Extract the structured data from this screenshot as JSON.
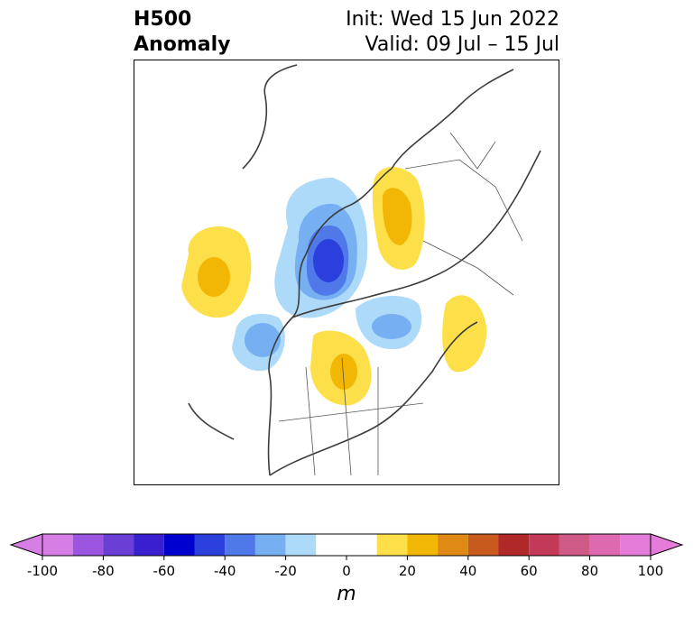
{
  "header": {
    "title_line1": "H500",
    "title_line2": "Anomaly",
    "init_text": "Init: Wed 15 Jun 2022",
    "valid_text": "Valid: 09 Jul – 15 Jul"
  },
  "colorbar": {
    "unit": "m",
    "tick_labels": [
      "-100",
      "-80",
      "-60",
      "-40",
      "-20",
      "0",
      "20",
      "40",
      "60",
      "80",
      "100"
    ],
    "bins": [
      {
        "lo": -100,
        "hi": -90,
        "color": "#d67ee6"
      },
      {
        "lo": -90,
        "hi": -80,
        "color": "#9b55e0"
      },
      {
        "lo": -80,
        "hi": -70,
        "color": "#6b3fd6"
      },
      {
        "lo": -70,
        "hi": -60,
        "color": "#3a1fd0"
      },
      {
        "lo": -60,
        "hi": -50,
        "color": "#0000cf"
      },
      {
        "lo": -50,
        "hi": -40,
        "color": "#2a3fdc"
      },
      {
        "lo": -40,
        "hi": -30,
        "color": "#4f78e8"
      },
      {
        "lo": -30,
        "hi": -20,
        "color": "#76b0f2"
      },
      {
        "lo": -20,
        "hi": -10,
        "color": "#aedaf9"
      },
      {
        "lo": -10,
        "hi": 10,
        "color": "#ffffff"
      },
      {
        "lo": 10,
        "hi": 20,
        "color": "#fde049"
      },
      {
        "lo": 20,
        "hi": 30,
        "color": "#f2b705"
      },
      {
        "lo": 30,
        "hi": 40,
        "color": "#df8a14"
      },
      {
        "lo": 40,
        "hi": 50,
        "color": "#c95a1e"
      },
      {
        "lo": 50,
        "hi": 60,
        "color": "#b02828"
      },
      {
        "lo": 60,
        "hi": 70,
        "color": "#c23a58"
      },
      {
        "lo": 70,
        "hi": 80,
        "color": "#d05a86"
      },
      {
        "lo": 80,
        "hi": 90,
        "color": "#dd6aaf"
      },
      {
        "lo": 90,
        "hi": 100,
        "color": "#e47bd8"
      }
    ],
    "under_color": "#d67ee6",
    "over_color": "#e47bd8"
  },
  "map": {
    "projection": "north-polar-stereographic",
    "region": "Northern Hemisphere (North Pole, North America)",
    "anomalies": [
      {
        "region": "North Pacific",
        "sign": "positive",
        "peak_m": 25
      },
      {
        "region": "Arctic Ocean / Beaufort",
        "sign": "negative",
        "peak_m": -45
      },
      {
        "region": "Gulf of Alaska",
        "sign": "negative",
        "peak_m": -25
      },
      {
        "region": "Central Canada / US border",
        "sign": "positive",
        "peak_m": 25
      },
      {
        "region": "Hudson Bay / Labrador",
        "sign": "negative",
        "peak_m": -25
      },
      {
        "region": "North Atlantic",
        "sign": "positive",
        "peak_m": 15
      },
      {
        "region": "Siberia / Kara Sea",
        "sign": "positive",
        "peak_m": 25
      }
    ]
  }
}
